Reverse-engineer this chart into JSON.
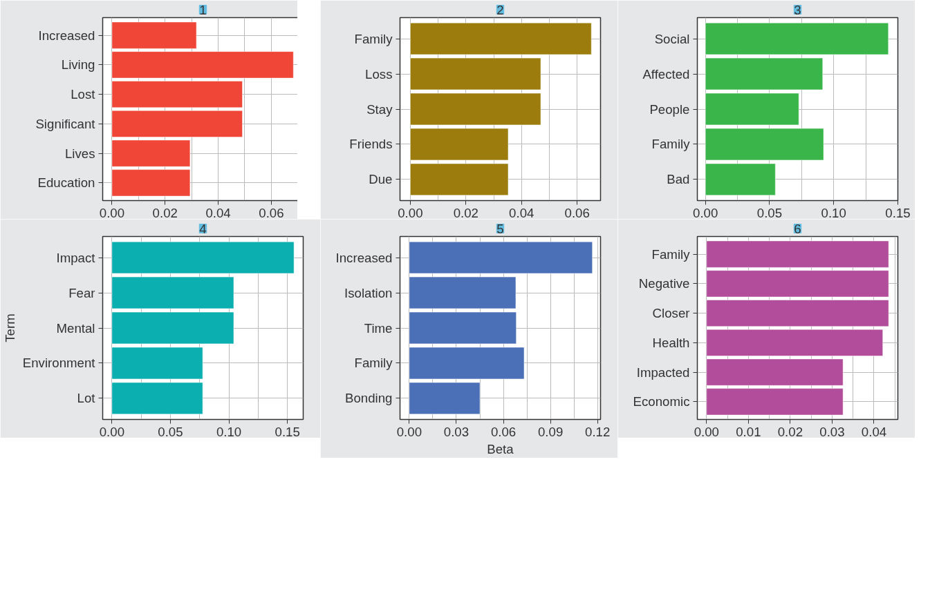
{
  "chart_data": [
    {
      "type": "bar",
      "orientation": "horizontal",
      "title": "1",
      "categories": [
        "Increased",
        "Living",
        "Lost",
        "Significant",
        "Lives",
        "Education"
      ],
      "values": [
        0.0318,
        0.0683,
        0.0491,
        0.0491,
        0.0294,
        0.0294
      ],
      "color": "#ef4638",
      "xlim": [
        -0.0035,
        0.072
      ],
      "xticks": [
        {
          "value": 0,
          "label": "0.00"
        },
        {
          "value": 0.02,
          "label": "0.02"
        },
        {
          "value": 0.04,
          "label": "0.04"
        },
        {
          "value": 0.06,
          "label": "0.06"
        }
      ],
      "grid": true
    },
    {
      "type": "bar",
      "orientation": "horizontal",
      "title": "2",
      "categories": [
        "Family",
        "Loss",
        "Stay",
        "Friends",
        "Due"
      ],
      "values": [
        0.0651,
        0.0469,
        0.0469,
        0.0352,
        0.0352
      ],
      "color": "#9b7c0c",
      "xlim": [
        -0.0037,
        0.0684
      ],
      "xticks": [
        {
          "value": 0,
          "label": "0.00"
        },
        {
          "value": 0.02,
          "label": "0.02"
        },
        {
          "value": 0.04,
          "label": "0.04"
        },
        {
          "value": 0.06,
          "label": "0.06"
        }
      ],
      "grid": true
    },
    {
      "type": "bar",
      "orientation": "horizontal",
      "title": "3",
      "categories": [
        "Social",
        "Affected",
        "People",
        "Family",
        "Bad"
      ],
      "values": [
        0.1426,
        0.0914,
        0.0728,
        0.0921,
        0.0545
      ],
      "color": "#39b54a",
      "xlim": [
        -0.0063,
        0.15
      ],
      "xticks": [
        {
          "value": 0,
          "label": "0.00"
        },
        {
          "value": 0.05,
          "label": "0.05"
        },
        {
          "value": 0.1,
          "label": "0.10"
        },
        {
          "value": 0.15,
          "label": "0.15"
        }
      ],
      "grid": true
    },
    {
      "type": "bar",
      "orientation": "horizontal",
      "title": "4",
      "ylabel": "Term",
      "categories": [
        "Impact",
        "Fear",
        "Mental",
        "Environment",
        "Lot"
      ],
      "values": [
        0.1556,
        0.1041,
        0.1041,
        0.0776,
        0.0776
      ],
      "color": "#0cafb0",
      "xlim": [
        -0.0079,
        0.1635
      ],
      "xticks": [
        {
          "value": 0,
          "label": "0.00"
        },
        {
          "value": 0.05,
          "label": "0.05"
        },
        {
          "value": 0.1,
          "label": "0.10"
        },
        {
          "value": 0.15,
          "label": "0.15"
        }
      ],
      "grid": true
    },
    {
      "type": "bar",
      "orientation": "horizontal",
      "title": "5",
      "xlabel": "Beta",
      "categories": [
        "Increased",
        "Isolation",
        "Time",
        "Family",
        "Bonding"
      ],
      "values": [
        0.1167,
        0.0679,
        0.0682,
        0.0732,
        0.045
      ],
      "color": "#4b70b8",
      "xlim": [
        -0.0059,
        0.1219
      ],
      "xticks": [
        {
          "value": 0,
          "label": "0.00"
        },
        {
          "value": 0.03,
          "label": "0.03"
        },
        {
          "value": 0.06,
          "label": "0.06"
        },
        {
          "value": 0.09,
          "label": "0.09"
        },
        {
          "value": 0.12,
          "label": "0.12"
        }
      ],
      "grid": true
    },
    {
      "type": "bar",
      "orientation": "horizontal",
      "title": "6",
      "categories": [
        "Family",
        "Negative",
        "Closer",
        "Health",
        "Impacted",
        "Economic"
      ],
      "values": [
        0.0435,
        0.0435,
        0.0435,
        0.0421,
        0.0326,
        0.0326
      ],
      "color": "#b24d9b",
      "xlim": [
        -0.0022,
        0.0457
      ],
      "xticks": [
        {
          "value": 0,
          "label": "0.00"
        },
        {
          "value": 0.01,
          "label": "0.01"
        },
        {
          "value": 0.02,
          "label": "0.02"
        },
        {
          "value": 0.03,
          "label": "0.03"
        },
        {
          "value": 0.04,
          "label": "0.04"
        }
      ],
      "grid": true
    }
  ]
}
